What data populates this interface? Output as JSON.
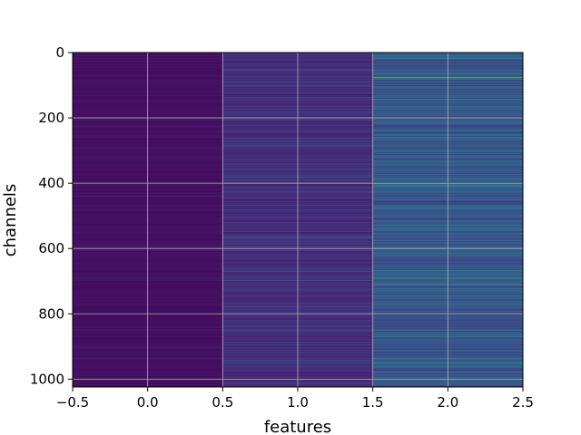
{
  "chart_data": {
    "type": "heatmap",
    "title": "",
    "xlabel": "features",
    "ylabel": "channels",
    "xlim": [
      -0.5,
      2.5
    ],
    "ylim": [
      1024,
      0
    ],
    "y_inverted": true,
    "xticks": [
      -0.5,
      0.0,
      0.5,
      1.0,
      1.5,
      2.0,
      2.5
    ],
    "xtick_labels": [
      "−0.5",
      "0.0",
      "0.5",
      "1.0",
      "1.5",
      "2.0",
      "2.5"
    ],
    "yticks": [
      0,
      200,
      400,
      600,
      800,
      1000
    ],
    "ytick_labels": [
      "0",
      "200",
      "400",
      "600",
      "800",
      "1000"
    ],
    "grid": true,
    "colormap": "viridis",
    "n_rows": 1024,
    "columns": [
      {
        "feature": 0,
        "base": 0.03,
        "spread": 0.05,
        "highlights": []
      },
      {
        "feature": 1,
        "base": 0.09,
        "spread": 0.16,
        "highlights": [
          [
            90,
            0.35
          ],
          [
            380,
            0.35
          ],
          [
            565,
            0.42
          ],
          [
            697,
            0.55
          ],
          [
            850,
            0.32
          ],
          [
            945,
            0.4
          ]
        ]
      },
      {
        "feature": 2,
        "base": 0.18,
        "spread": 0.3,
        "highlights": [
          [
            18,
            0.5
          ],
          [
            75,
            0.95
          ],
          [
            130,
            0.4
          ],
          [
            210,
            0.4
          ],
          [
            345,
            0.5
          ],
          [
            410,
            0.55
          ],
          [
            470,
            0.45
          ],
          [
            565,
            0.55
          ],
          [
            610,
            0.45
          ],
          [
            685,
            0.65
          ],
          [
            700,
            0.6
          ],
          [
            710,
            0.62
          ],
          [
            775,
            0.4
          ],
          [
            850,
            0.45
          ],
          [
            940,
            0.62
          ],
          [
            950,
            0.55
          ],
          [
            1005,
            0.45
          ]
        ]
      }
    ]
  }
}
